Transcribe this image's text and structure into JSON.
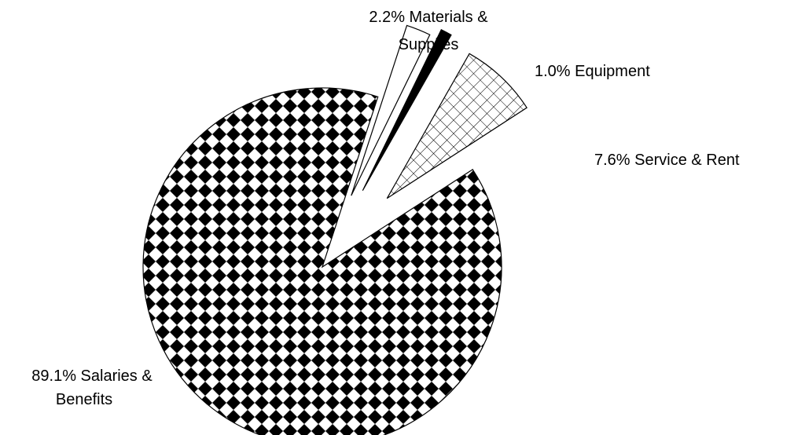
{
  "chart_data": {
    "type": "pie",
    "exploded": true,
    "slices": [
      {
        "name": "Salaries & Benefits",
        "value": 89.1,
        "label": "89.1% Salaries & Benefits",
        "label_lines": [
          "89.1% Salaries &",
          "Benefits"
        ],
        "pattern": "checker",
        "fill_color": "#000000"
      },
      {
        "name": "Materials & Supplies",
        "value": 2.2,
        "label": "2.2% Materials & Supplies",
        "label_lines": [
          "2.2%   Materials &",
          "Supplies"
        ],
        "pattern": "none",
        "fill_color": "#ffffff"
      },
      {
        "name": "Equipment",
        "value": 1.0,
        "label": "1.0% Equipment",
        "label_lines": [
          "1.0%   Equipment"
        ],
        "pattern": "solid",
        "fill_color": "#000000"
      },
      {
        "name": "Service & Rent",
        "value": 7.6,
        "label": "7.6% Service & Rent",
        "label_lines": [
          "7.6%   Service & Rent"
        ],
        "pattern": "crosshatch",
        "fill_color": "#000000"
      }
    ]
  }
}
